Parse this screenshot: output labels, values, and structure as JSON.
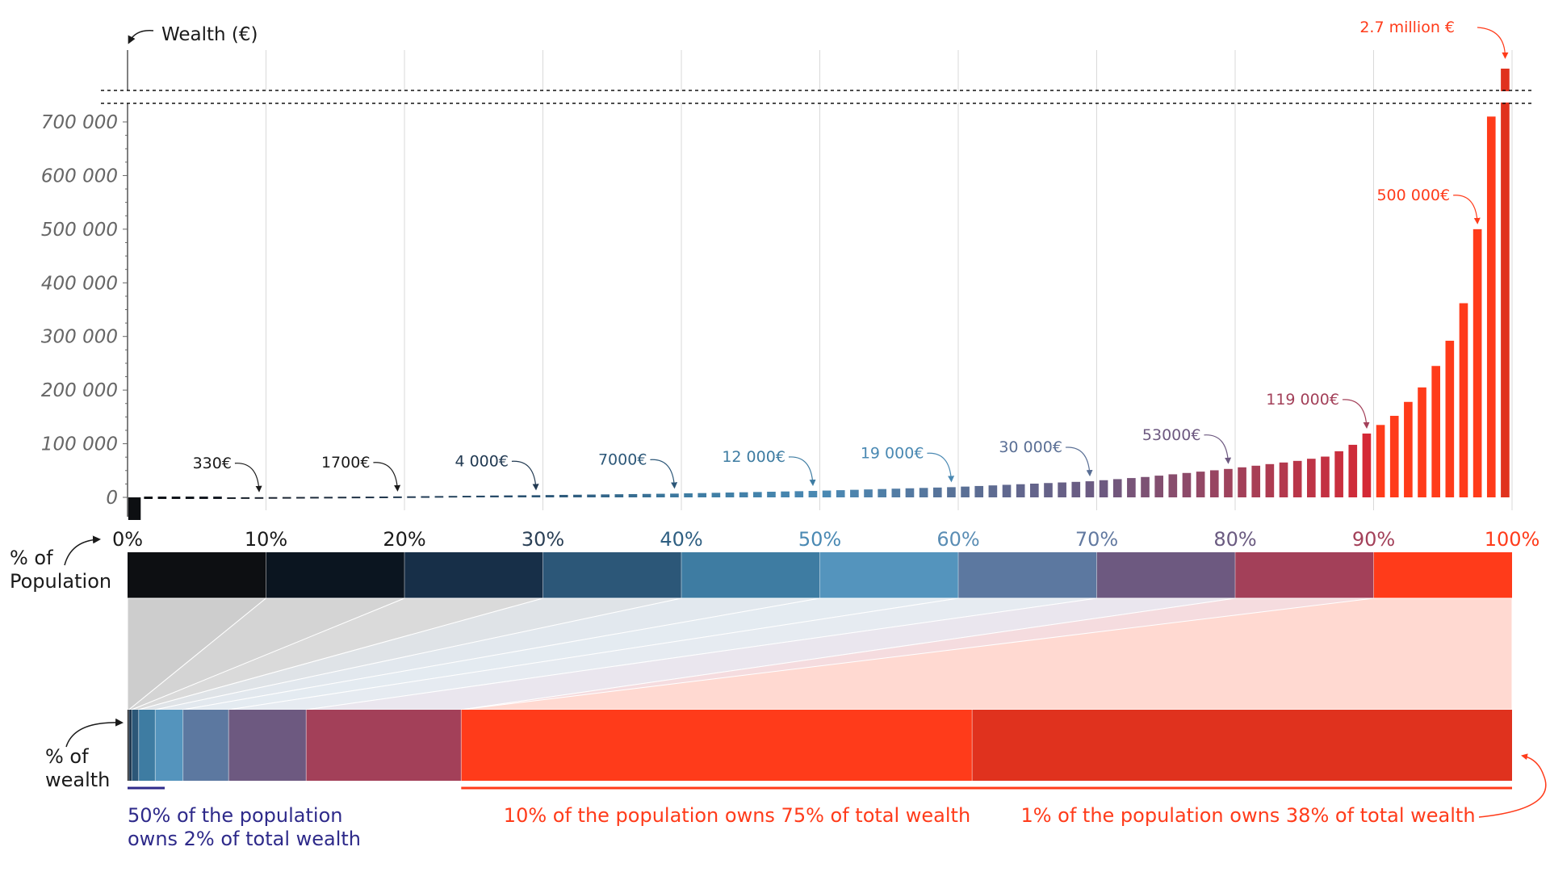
{
  "chart_data": {
    "type": "bar",
    "title": "",
    "ylabel": "Wealth (€)",
    "ylim": [
      0,
      750000
    ],
    "y_ticks": [
      "0",
      "100 000",
      "200 000",
      "300 000",
      "400 000",
      "500 000",
      "600 000",
      "700 000"
    ],
    "y_tick_values": [
      0,
      100000,
      200000,
      300000,
      400000,
      500000,
      600000,
      700000
    ],
    "x_axis": "percentile of population (0–100)",
    "bar_count": 100,
    "values": [
      -18000,
      -3000,
      -1500,
      -800,
      -400,
      -200,
      0,
      100,
      200,
      330,
      450,
      600,
      750,
      900,
      1000,
      1150,
      1300,
      1400,
      1550,
      1700,
      1950,
      2200,
      2450,
      2700,
      2950,
      3200,
      3450,
      3650,
      3850,
      4000,
      4300,
      4600,
      4900,
      5200,
      5500,
      5800,
      6100,
      6400,
      6700,
      7000,
      7500,
      8000,
      8500,
      9000,
      9500,
      10000,
      10500,
      11000,
      11500,
      12000,
      12700,
      13400,
      14100,
      14800,
      15500,
      16200,
      16900,
      17600,
      18300,
      19000,
      20100,
      21200,
      22300,
      23400,
      24500,
      25600,
      26700,
      27800,
      28900,
      30000,
      32000,
      34000,
      36000,
      38000,
      40500,
      43000,
      45500,
      48000,
      50500,
      53000,
      56000,
      59000,
      62000,
      65000,
      68000,
      72000,
      76000,
      86000,
      98000,
      119000,
      135000,
      152000,
      178000,
      205000,
      245000,
      292000,
      362000,
      500000,
      710000,
      2700000
    ],
    "x_ticks": [
      "0%",
      "10%",
      "20%",
      "30%",
      "40%",
      "50%",
      "60%",
      "70%",
      "80%",
      "90%",
      "100%"
    ],
    "decile_colors": [
      "#0d0f12",
      "#0b1520",
      "#172f48",
      "#2c5778",
      "#3e7ca2",
      "#5494bd",
      "#5c78a0",
      "#6d5980",
      "#a34059",
      "#ff3b1a"
    ],
    "tick_label_colors": [
      "#1a1a1a",
      "#1a1a1a",
      "#1a1a1a",
      "#2a3f55",
      "#2f5f82",
      "#4a89b3",
      "#5a8db4",
      "#6279a0",
      "#6a5a80",
      "#a34059",
      "#ff3b1a"
    ],
    "axis_break": "2.7 million €",
    "annotations": [
      {
        "text": "330€",
        "percentile": 10,
        "color": "#1a1a1a"
      },
      {
        "text": "1700€",
        "percentile": 20,
        "color": "#1a1a1a"
      },
      {
        "text": "4 000€",
        "percentile": 30,
        "color": "#223a52"
      },
      {
        "text": "7000€",
        "percentile": 40,
        "color": "#2c5778"
      },
      {
        "text": "12 000€",
        "percentile": 50,
        "color": "#3e7ca2"
      },
      {
        "text": "19 000€",
        "percentile": 60,
        "color": "#4a89b3"
      },
      {
        "text": "30 000€",
        "percentile": 70,
        "color": "#5a6f95"
      },
      {
        "text": "53000€",
        "percentile": 80,
        "color": "#6d5980"
      },
      {
        "text": "119 000€",
        "percentile": 90,
        "color": "#a34059"
      },
      {
        "text": "500 000€",
        "percentile": 98,
        "color": "#ff3b1a"
      },
      {
        "text": "2.7 million €",
        "percentile": 100,
        "color": "#ff3b1a"
      }
    ],
    "population_label": [
      "% of",
      "Population"
    ],
    "wealth_label": [
      "% of",
      "wealth"
    ],
    "wealth_shares_percent": [
      0.1,
      0.2,
      0.5,
      1.2,
      2.0,
      3.3,
      5.6,
      11.2,
      36.9,
      38.0
    ],
    "wealth_segment_colors": [
      "#0d0f12",
      "#172f48",
      "#2c5778",
      "#3e7ca2",
      "#5494bd",
      "#5c78a0",
      "#6d5980",
      "#a34059",
      "#ff3b1a",
      "#e0321e"
    ],
    "captions": {
      "bottom50": [
        "50% of the population",
        "owns 2% of total wealth"
      ],
      "top10": "10% of the population owns 75% of total wealth",
      "top1": "1% of the population owns 38% of total wealth"
    },
    "caption_colors": {
      "bottom50": "#2e2a8a",
      "top": "#ff3b1a"
    }
  }
}
